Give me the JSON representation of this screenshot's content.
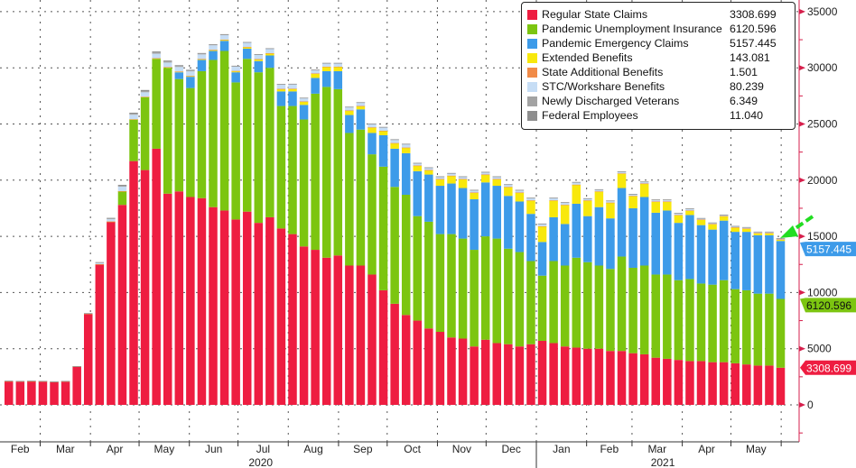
{
  "chart_data": {
    "type": "bar",
    "stacked": true,
    "y_axis_side": "right",
    "ylim": [
      -3300,
      36000
    ],
    "yticks": [
      0,
      5000,
      10000,
      15000,
      20000,
      25000,
      30000,
      35000
    ],
    "grid": true,
    "legend_position": "top-right",
    "x": [
      "2020-02-08",
      "2020-02-15",
      "2020-02-22",
      "2020-02-29",
      "2020-03-07",
      "2020-03-14",
      "2020-03-21",
      "2020-03-28",
      "2020-04-04",
      "2020-04-11",
      "2020-04-18",
      "2020-04-25",
      "2020-05-02",
      "2020-05-09",
      "2020-05-16",
      "2020-05-23",
      "2020-05-30",
      "2020-06-06",
      "2020-06-13",
      "2020-06-20",
      "2020-06-27",
      "2020-07-04",
      "2020-07-11",
      "2020-07-18",
      "2020-07-25",
      "2020-08-01",
      "2020-08-08",
      "2020-08-15",
      "2020-08-22",
      "2020-08-29",
      "2020-09-05",
      "2020-09-12",
      "2020-09-19",
      "2020-09-26",
      "2020-10-03",
      "2020-10-10",
      "2020-10-17",
      "2020-10-24",
      "2020-10-31",
      "2020-11-07",
      "2020-11-14",
      "2020-11-21",
      "2020-11-28",
      "2020-12-05",
      "2020-12-12",
      "2020-12-19",
      "2020-12-26",
      "2021-01-02",
      "2021-01-09",
      "2021-01-16",
      "2021-01-23",
      "2021-01-30",
      "2021-02-06",
      "2021-02-13",
      "2021-02-20",
      "2021-02-27",
      "2021-03-06",
      "2021-03-13",
      "2021-03-20",
      "2021-03-27",
      "2021-04-03",
      "2021-04-10",
      "2021-04-17",
      "2021-04-24",
      "2021-05-01",
      "2021-05-08",
      "2021-05-15",
      "2021-05-22",
      "2021-05-29"
    ],
    "months": [
      {
        "label": "Feb",
        "start": "2020-02-01"
      },
      {
        "label": "Mar",
        "start": "2020-03-01"
      },
      {
        "label": "Apr",
        "start": "2020-04-01"
      },
      {
        "label": "May",
        "start": "2020-05-01"
      },
      {
        "label": "Jun",
        "start": "2020-06-01"
      },
      {
        "label": "Jul",
        "start": "2020-07-01"
      },
      {
        "label": "Aug",
        "start": "2020-08-01"
      },
      {
        "label": "Sep",
        "start": "2020-09-01"
      },
      {
        "label": "Oct",
        "start": "2020-10-01"
      },
      {
        "label": "Nov",
        "start": "2020-11-01"
      },
      {
        "label": "Dec",
        "start": "2020-12-01"
      },
      {
        "label": "Jan",
        "start": "2021-01-01"
      },
      {
        "label": "Feb",
        "start": "2021-02-01"
      },
      {
        "label": "Mar",
        "start": "2021-03-01"
      },
      {
        "label": "Apr",
        "start": "2021-04-01"
      },
      {
        "label": "May",
        "start": "2021-05-01"
      },
      {
        "label": "",
        "start": "2021-06-01"
      }
    ],
    "years": [
      {
        "label": "2020",
        "mid": "2020-07-15"
      },
      {
        "label": "2021",
        "mid": "2021-03-20"
      }
    ],
    "series": [
      {
        "name": "Regular State Claims",
        "last": "3308.699",
        "color": "#ee1d41",
        "tag": true,
        "values": [
          2100,
          2080,
          2100,
          2080,
          2030,
          2080,
          3400,
          8100,
          12500,
          16300,
          17800,
          21700,
          20900,
          22800,
          18800,
          19000,
          18500,
          18400,
          17600,
          17300,
          16500,
          17200,
          16200,
          16700,
          15700,
          15200,
          14100,
          13800,
          13100,
          13300,
          12400,
          12400,
          11600,
          10200,
          9000,
          8000,
          7500,
          6800,
          6500,
          6000,
          5900,
          5200,
          5800,
          5500,
          5400,
          5200,
          5400,
          5700,
          5500,
          5200,
          5100,
          5000,
          5000,
          4800,
          4800,
          4600,
          4500,
          4200,
          4100,
          4000,
          3900,
          3900,
          3800,
          3800,
          3700,
          3600,
          3500,
          3500,
          3309
        ]
      },
      {
        "name": "Pandemic Unemployment Insurance",
        "last": "6120.596",
        "color": "#7cc510",
        "tag": true,
        "values": [
          0,
          0,
          0,
          0,
          0,
          0,
          0,
          0,
          0,
          0,
          1200,
          3700,
          6500,
          8000,
          11200,
          10000,
          9700,
          11300,
          13100,
          14200,
          12200,
          13600,
          13400,
          13300,
          10900,
          11400,
          11300,
          13900,
          15200,
          14800,
          11800,
          12100,
          10700,
          11000,
          10400,
          10700,
          9300,
          9500,
          8700,
          9200,
          8900,
          8600,
          9200,
          9300,
          8500,
          8400,
          7400,
          5800,
          7300,
          7200,
          8000,
          7700,
          7400,
          7300,
          8400,
          7600,
          7900,
          7400,
          7500,
          7100,
          7300,
          6900,
          6900,
          7300,
          6600,
          6600,
          6400,
          6400,
          6121
        ]
      },
      {
        "name": "Pandemic Emergency Claims",
        "last": "5157.445",
        "color": "#3d9be9",
        "tag": true,
        "values": [
          0,
          0,
          0,
          0,
          0,
          0,
          0,
          0,
          0,
          0,
          0,
          0,
          0,
          0,
          0,
          600,
          1000,
          1000,
          800,
          900,
          900,
          900,
          1000,
          1100,
          1300,
          1300,
          1300,
          1400,
          1400,
          1600,
          1600,
          1800,
          1900,
          2800,
          3400,
          3700,
          4000,
          4200,
          4300,
          4500,
          4500,
          4500,
          4800,
          4700,
          4700,
          4500,
          4200,
          3000,
          3900,
          3700,
          4800,
          4100,
          5200,
          4500,
          6100,
          5300,
          6100,
          5500,
          5700,
          5100,
          5700,
          5200,
          4900,
          5300,
          5100,
          5200,
          5200,
          5200,
          5157
        ]
      },
      {
        "name": "Extended Benefits",
        "last": "143.081",
        "color": "#f8e80c",
        "tag": false,
        "values": [
          20,
          20,
          20,
          20,
          20,
          20,
          20,
          20,
          20,
          20,
          20,
          20,
          20,
          50,
          60,
          70,
          80,
          90,
          100,
          110,
          120,
          150,
          170,
          200,
          220,
          240,
          300,
          400,
          400,
          400,
          400,
          300,
          500,
          400,
          500,
          500,
          500,
          400,
          600,
          700,
          800,
          600,
          700,
          600,
          800,
          800,
          1200,
          1400,
          1500,
          1700,
          1700,
          1400,
          1400,
          1400,
          1300,
          1100,
          1200,
          1000,
          800,
          700,
          400,
          500,
          500,
          400,
          400,
          300,
          200,
          200,
          143
        ]
      },
      {
        "name": "State Additional Benefits",
        "last": "1.501",
        "color": "#f18b48",
        "tag": false,
        "values": [
          5,
          5,
          5,
          5,
          5,
          5,
          5,
          5,
          5,
          5,
          5,
          5,
          5,
          5,
          5,
          5,
          5,
          5,
          5,
          5,
          5,
          5,
          5,
          5,
          5,
          5,
          5,
          5,
          5,
          5,
          5,
          5,
          5,
          5,
          5,
          5,
          5,
          5,
          5,
          5,
          5,
          5,
          5,
          5,
          5,
          5,
          5,
          5,
          5,
          5,
          5,
          5,
          5,
          5,
          5,
          5,
          5,
          5,
          5,
          5,
          5,
          5,
          5,
          5,
          3,
          3,
          2,
          2,
          1.5
        ]
      },
      {
        "name": "STC/Workshare Benefits",
        "last": "80.239",
        "color": "#c6ddf5",
        "tag": false,
        "values": [
          0,
          0,
          0,
          0,
          0,
          0,
          0,
          0,
          100,
          200,
          400,
          400,
          400,
          400,
          400,
          400,
          400,
          400,
          400,
          400,
          400,
          400,
          400,
          400,
          400,
          400,
          300,
          300,
          300,
          300,
          300,
          300,
          300,
          300,
          300,
          300,
          200,
          200,
          200,
          200,
          200,
          200,
          200,
          200,
          200,
          200,
          200,
          200,
          200,
          200,
          200,
          150,
          150,
          150,
          150,
          150,
          150,
          150,
          150,
          150,
          150,
          100,
          100,
          100,
          100,
          100,
          100,
          100,
          80
        ]
      },
      {
        "name": "Newly Discharged Veterans",
        "last": "6.349",
        "color": "#a3a3a3",
        "tag": false,
        "values": [
          10,
          10,
          10,
          10,
          10,
          10,
          10,
          20,
          40,
          60,
          80,
          90,
          100,
          100,
          90,
          80,
          70,
          60,
          50,
          40,
          30,
          20,
          20,
          15,
          15,
          15,
          15,
          15,
          15,
          15,
          15,
          15,
          15,
          15,
          15,
          15,
          15,
          15,
          15,
          15,
          15,
          15,
          15,
          15,
          15,
          15,
          15,
          15,
          15,
          15,
          15,
          15,
          15,
          15,
          15,
          10,
          10,
          10,
          10,
          10,
          10,
          10,
          10,
          10,
          8,
          8,
          7,
          7,
          6.3
        ]
      },
      {
        "name": "Federal Employees",
        "last": "11.040",
        "color": "#8e8e8e",
        "tag": false,
        "values": [
          15,
          15,
          15,
          15,
          15,
          15,
          15,
          20,
          40,
          60,
          80,
          90,
          100,
          100,
          90,
          80,
          70,
          60,
          50,
          40,
          30,
          20,
          20,
          20,
          20,
          20,
          20,
          20,
          20,
          20,
          20,
          20,
          20,
          20,
          20,
          20,
          20,
          20,
          20,
          20,
          20,
          20,
          20,
          20,
          20,
          20,
          20,
          20,
          20,
          20,
          20,
          20,
          20,
          20,
          20,
          15,
          15,
          15,
          15,
          15,
          15,
          15,
          15,
          15,
          12,
          12,
          11,
          11,
          11
        ]
      }
    ],
    "axis_color": "#d61f4c",
    "arrow_color": "#22dd22"
  }
}
